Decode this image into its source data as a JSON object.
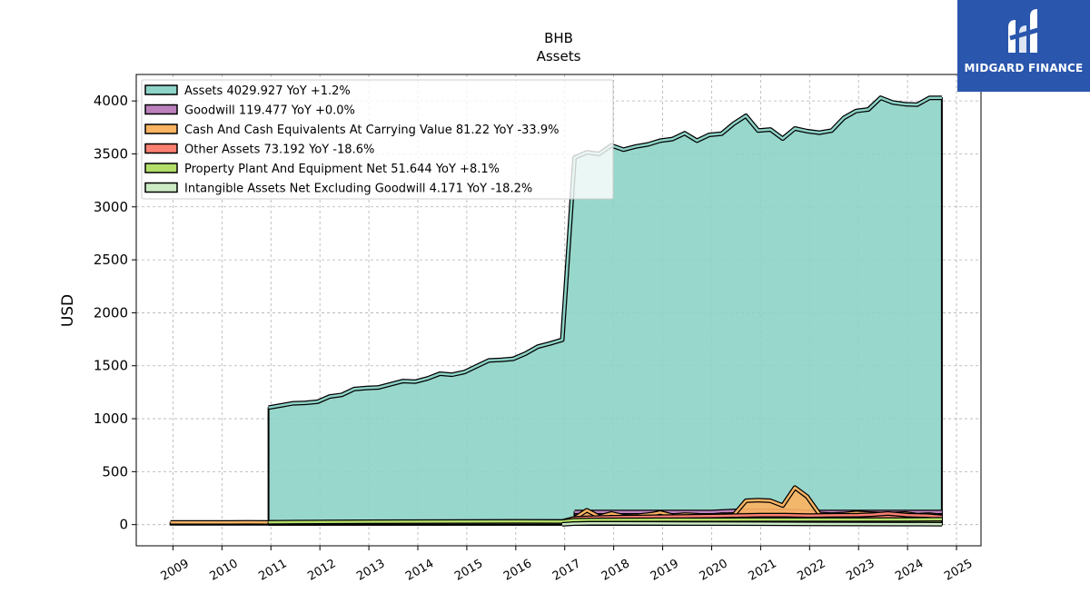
{
  "chart_data": {
    "type": "area",
    "title": "BHB",
    "subtitle": "Assets",
    "ylabel": "USD",
    "xlabel": "",
    "ylim": [
      -200,
      4250
    ],
    "xlim": [
      2008.25,
      2025.5
    ],
    "yticks": [
      0,
      500,
      1000,
      1500,
      2000,
      2500,
      3000,
      3500,
      4000
    ],
    "xticks": [
      "2009",
      "2010",
      "2011",
      "2012",
      "2013",
      "2014",
      "2015",
      "2016",
      "2017",
      "2018",
      "2019",
      "2020",
      "2021",
      "2022",
      "2023",
      "2024",
      "2025"
    ],
    "grid": true,
    "legend_position": "top-left",
    "series": [
      {
        "name": "Assets",
        "legend": "Assets  4029.927 YoY +1.2%",
        "color": "#8dd3c7",
        "x": [
          2010.95,
          2011.2,
          2011.45,
          2011.7,
          2011.95,
          2012.2,
          2012.45,
          2012.7,
          2012.95,
          2013.2,
          2013.45,
          2013.7,
          2013.95,
          2014.2,
          2014.45,
          2014.7,
          2014.95,
          2015.2,
          2015.45,
          2015.7,
          2015.95,
          2016.2,
          2016.45,
          2016.7,
          2016.95,
          2017.2,
          2017.45,
          2017.7,
          2017.95,
          2018.2,
          2018.45,
          2018.7,
          2018.95,
          2019.2,
          2019.45,
          2019.7,
          2019.95,
          2020.2,
          2020.45,
          2020.7,
          2020.95,
          2021.2,
          2021.45,
          2021.7,
          2021.95,
          2022.2,
          2022.45,
          2022.7,
          2022.95,
          2023.2,
          2023.45,
          2023.7,
          2023.95,
          2024.2,
          2024.45,
          2024.7
        ],
        "values": [
          1105,
          1125,
          1145,
          1150,
          1160,
          1210,
          1225,
          1280,
          1290,
          1295,
          1325,
          1355,
          1350,
          1380,
          1425,
          1415,
          1440,
          1495,
          1550,
          1555,
          1565,
          1615,
          1680,
          1710,
          1745,
          3465,
          3515,
          3500,
          3580,
          3540,
          3570,
          3590,
          3625,
          3640,
          3695,
          3625,
          3680,
          3690,
          3785,
          3860,
          3720,
          3730,
          3645,
          3740,
          3715,
          3700,
          3720,
          3840,
          3905,
          3920,
          4030,
          3985,
          3970,
          3965,
          4030,
          4030
        ]
      },
      {
        "name": "Goodwill",
        "legend": "Goodwill  119.477 YoY +0.0%",
        "color": "#bc80bd",
        "x": [
          2017.2,
          2017.5,
          2017.8,
          2018.1,
          2018.5,
          2019.0,
          2019.5,
          2020.0,
          2020.5,
          2021.0,
          2021.5,
          2022.0,
          2022.5,
          2023.0,
          2023.5,
          2024.0,
          2024.7
        ],
        "values": [
          119.5,
          119.5,
          119.5,
          119.5,
          119.5,
          119.5,
          119.5,
          119.5,
          130,
          130,
          130,
          119.5,
          119.5,
          119.5,
          119.5,
          119.5,
          119.5
        ]
      },
      {
        "name": "Cash And Cash Equivalents At Carrying Value",
        "legend": "Cash And Cash Equivalents At Carrying Value  81.22 YoY -33.9%",
        "color": "#fdb462",
        "x": [
          2008.95,
          2009.5,
          2010.0,
          2010.5,
          2010.95,
          2011.5,
          2012.0,
          2013.0,
          2014.0,
          2015.0,
          2016.0,
          2016.95,
          2017.2,
          2017.45,
          2017.7,
          2017.95,
          2018.2,
          2018.5,
          2018.8,
          2018.95,
          2019.2,
          2019.45,
          2019.7,
          2019.95,
          2020.2,
          2020.45,
          2020.7,
          2020.95,
          2021.2,
          2021.45,
          2021.7,
          2021.95,
          2022.2,
          2022.45,
          2022.7,
          2022.95,
          2023.2,
          2023.45,
          2023.7,
          2023.95,
          2024.2,
          2024.45,
          2024.7
        ],
        "values": [
          20,
          20,
          20,
          22,
          20,
          22,
          23,
          25,
          25,
          27,
          30,
          30,
          60,
          135,
          75,
          105,
          80,
          85,
          100,
          115,
          85,
          95,
          90,
          80,
          95,
          90,
          225,
          230,
          225,
          180,
          350,
          265,
          100,
          95,
          100,
          110,
          105,
          100,
          100,
          105,
          90,
          95,
          81.22
        ]
      },
      {
        "name": "Other Assets",
        "legend": "Other Assets  73.192 YoY -18.6%",
        "color": "#fb8072",
        "x": [
          2017.2,
          2017.5,
          2018.0,
          2018.5,
          2019.0,
          2019.5,
          2020.0,
          2020.5,
          2021.0,
          2021.5,
          2022.0,
          2022.5,
          2023.0,
          2023.3,
          2023.6,
          2024.0,
          2024.4,
          2024.7
        ],
        "values": [
          60,
          65,
          70,
          72,
          75,
          78,
          80,
          85,
          90,
          90,
          85,
          88,
          90,
          95,
          105,
          90,
          85,
          73.192
        ]
      },
      {
        "name": "Property Plant And Equipment Net",
        "legend": "Property Plant And Equipment Net  51.644 YoY +8.1%",
        "color": "#b3de69",
        "x": [
          2010.95,
          2011.5,
          2012.0,
          2012.5,
          2013.0,
          2014.0,
          2015.0,
          2016.0,
          2016.95,
          2017.2,
          2017.5,
          2018.0,
          2019.0,
          2020.0,
          2021.0,
          2022.0,
          2023.0,
          2024.0,
          2024.7
        ],
        "values": [
          22,
          24,
          25,
          26,
          27,
          28,
          29,
          31,
          30,
          42,
          44,
          45,
          46,
          47,
          48,
          48,
          48,
          49,
          51.644
        ]
      },
      {
        "name": "Intangible Assets Net Excluding Goodwill",
        "legend": "Intangible Assets Net Excluding Goodwill  4.171 YoY -18.2%",
        "color": "#ccebc5",
        "x": [
          2016.95,
          2017.2,
          2017.5,
          2018.0,
          2019.0,
          2020.0,
          2021.0,
          2022.0,
          2023.0,
          2024.0,
          2024.7
        ],
        "values": [
          2,
          10,
          12,
          12,
          11,
          10,
          9,
          7,
          6,
          5,
          4.171
        ]
      }
    ]
  },
  "logo": {
    "name": "MIDGARD FINANCE",
    "color": "#2a56ad"
  }
}
